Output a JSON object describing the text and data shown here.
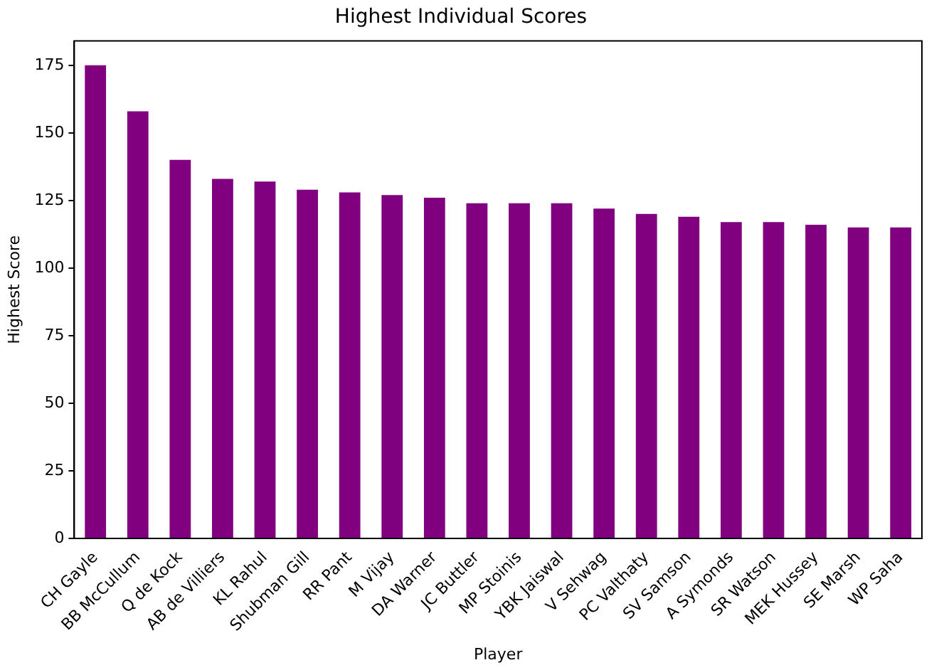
{
  "chart_data": {
    "type": "bar",
    "title": "Highest Individual Scores",
    "xlabel": "Player",
    "ylabel": "Highest Score",
    "categories": [
      "CH Gayle",
      "BB McCullum",
      "Q de Kock",
      "AB de Villiers",
      "KL Rahul",
      "Shubman Gill",
      "RR Pant",
      "M Vijay",
      "DA Warner",
      "JC Buttler",
      "MP Stoinis",
      "YBK Jaiswal",
      "V Sehwag",
      "PC Valthaty",
      "SV Samson",
      "A Symonds",
      "SR Watson",
      "MEK Hussey",
      "SE Marsh",
      "WP Saha"
    ],
    "values": [
      175,
      158,
      140,
      133,
      132,
      129,
      128,
      127,
      126,
      124,
      124,
      124,
      122,
      120,
      119,
      117,
      117,
      116,
      115,
      115
    ],
    "color": "#800080",
    "ylim": [
      0,
      184
    ],
    "yticks": [
      0,
      25,
      50,
      75,
      100,
      125,
      150,
      175
    ],
    "grid": false,
    "legend": false
  }
}
